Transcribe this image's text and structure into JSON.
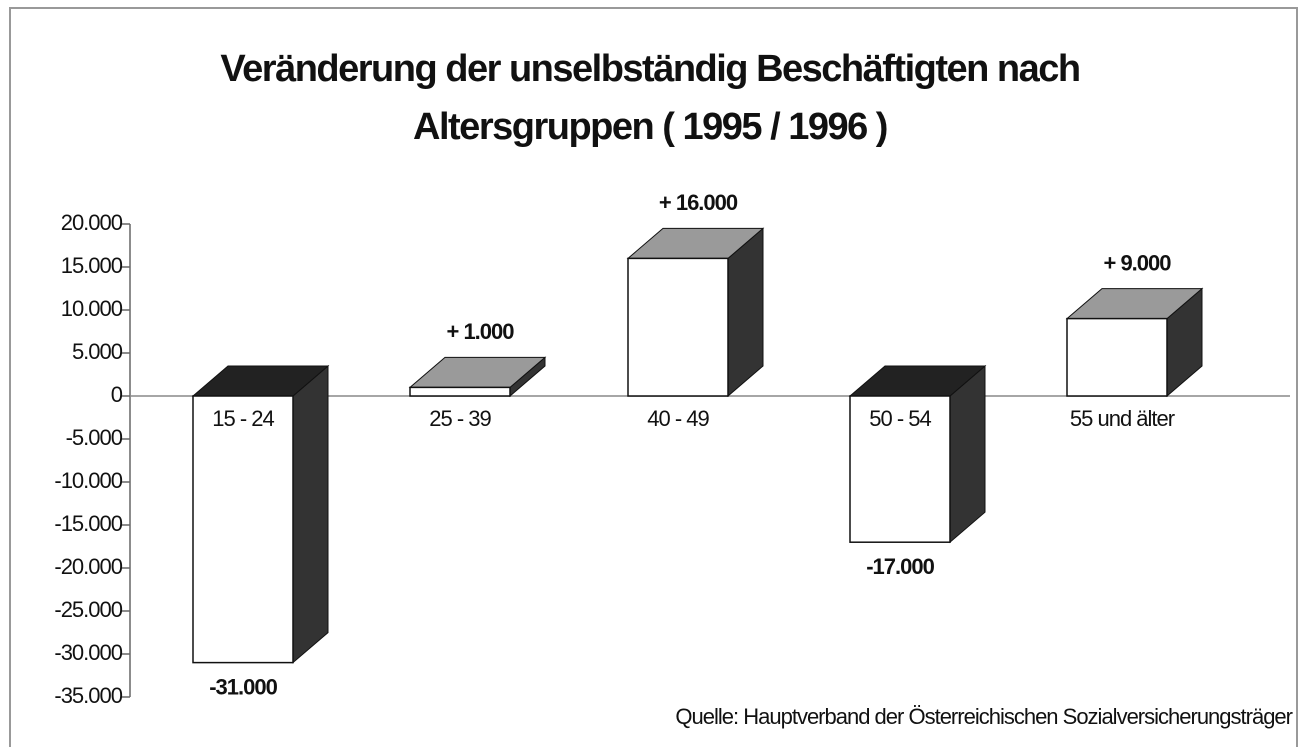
{
  "chart_data": {
    "type": "bar3d",
    "title": "Veränderung der unselbständig Beschäftigten nach Altersgruppen ( 1995 / 1996 )",
    "categories": [
      "15 - 24",
      "25 - 39",
      "40 - 49",
      "50 - 54",
      "55 und älter"
    ],
    "values": [
      -31000,
      1000,
      16000,
      -17000,
      9000
    ],
    "value_labels": [
      "-31.000",
      "+ 1.000",
      "+ 16.000",
      "-17.000",
      "+ 9.000"
    ],
    "ylim": [
      -35000,
      20000
    ],
    "yticks": [
      {
        "value": 20000,
        "label": "20.000"
      },
      {
        "value": 15000,
        "label": "15.000"
      },
      {
        "value": 10000,
        "label": "10.000"
      },
      {
        "value": 5000,
        "label": "5.000"
      },
      0,
      {
        "value": -5000,
        "label": "-5.000"
      },
      {
        "value": -10000,
        "label": "-10.000"
      },
      {
        "value": -15000,
        "label": "-15.000"
      },
      {
        "value": -20000,
        "label": "-20.000"
      },
      {
        "value": -25000,
        "label": "-25.000"
      },
      {
        "value": -30000,
        "label": "-30.000"
      },
      {
        "value": -35000,
        "label": "-35.000"
      }
    ],
    "source": "Quelle: Hauptverband der Österreichischen Sozialversicherungsträger"
  }
}
